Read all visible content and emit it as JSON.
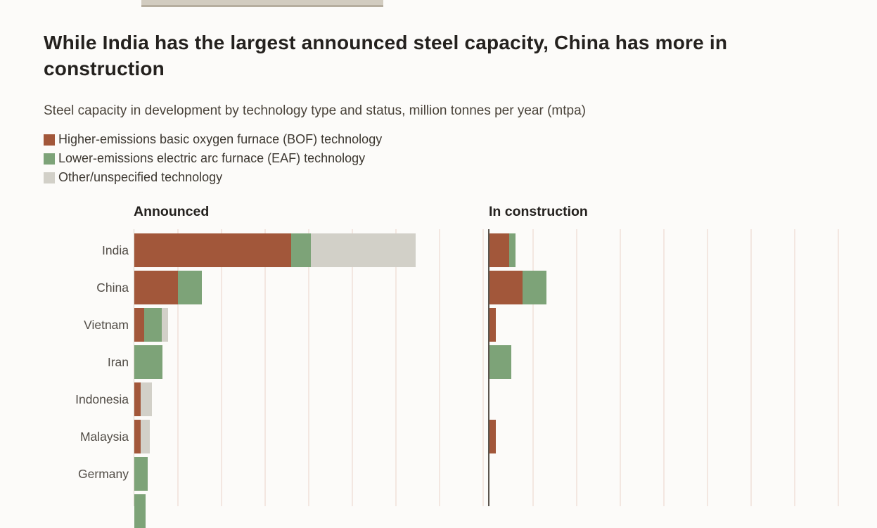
{
  "header": {
    "title": "While India has the largest announced steel capacity, China has more in\nconstruction",
    "subtitle": "Steel capacity in development by technology type and status, million tonnes per year (mtpa)"
  },
  "legend": {
    "items": [
      {
        "id": "bof",
        "label": "Higher-emissions basic oxygen furnace (BOF) technology",
        "color": "#a2573a"
      },
      {
        "id": "eaf",
        "label": "Lower-emissions electric arc furnace (EAF) technology",
        "color": "#7da378"
      },
      {
        "id": "other",
        "label": "Other/unspecified technology",
        "color": "#d2d0c8"
      }
    ]
  },
  "chart_data": {
    "type": "bar",
    "orientation": "horizontal",
    "stacked": true,
    "title": "While India has the largest announced steel capacity, China has more in construction",
    "subtitle": "Steel capacity in development by technology type and status, million tonnes per year (mtpa)",
    "value_units": "mtpa",
    "axis_tick_labels_visible": false,
    "grid": true,
    "estimated_gridline_step_mtpa": 20,
    "legend_position": "top-left",
    "categories": [
      "India",
      "China",
      "Vietnam",
      "Iran",
      "Indonesia",
      "Malaysia",
      "Germany",
      ""
    ],
    "panels": [
      {
        "label": "Announced",
        "series": [
          {
            "name": "Higher-emissions basic oxygen furnace (BOF) technology",
            "color": "#a2573a",
            "values": [
              72,
              20,
              4.5,
              0,
              3,
              3,
              0,
              0
            ]
          },
          {
            "name": "Lower-emissions electric arc furnace (EAF) technology",
            "color": "#7da378",
            "values": [
              9,
              11,
              8,
              13,
              0,
              0,
              6,
              5
            ]
          },
          {
            "name": "Other/unspecified technology",
            "color": "#d2d0c8",
            "values": [
              48,
              0,
              3,
              0,
              5,
              4,
              0,
              0
            ]
          }
        ]
      },
      {
        "label": "In construction",
        "series": [
          {
            "name": "Higher-emissions basic oxygen furnace (BOF) technology",
            "color": "#a2573a",
            "values": [
              9,
              15,
              3,
              0,
              0,
              3,
              0,
              0
            ]
          },
          {
            "name": "Lower-emissions electric arc furnace (EAF) technology",
            "color": "#7da378",
            "values": [
              3,
              11,
              0,
              10,
              0,
              0,
              0,
              0
            ]
          },
          {
            "name": "Other/unspecified technology",
            "color": "#d2d0c8",
            "values": [
              0,
              0,
              0,
              0,
              0,
              0,
              0,
              0
            ]
          }
        ]
      }
    ]
  }
}
